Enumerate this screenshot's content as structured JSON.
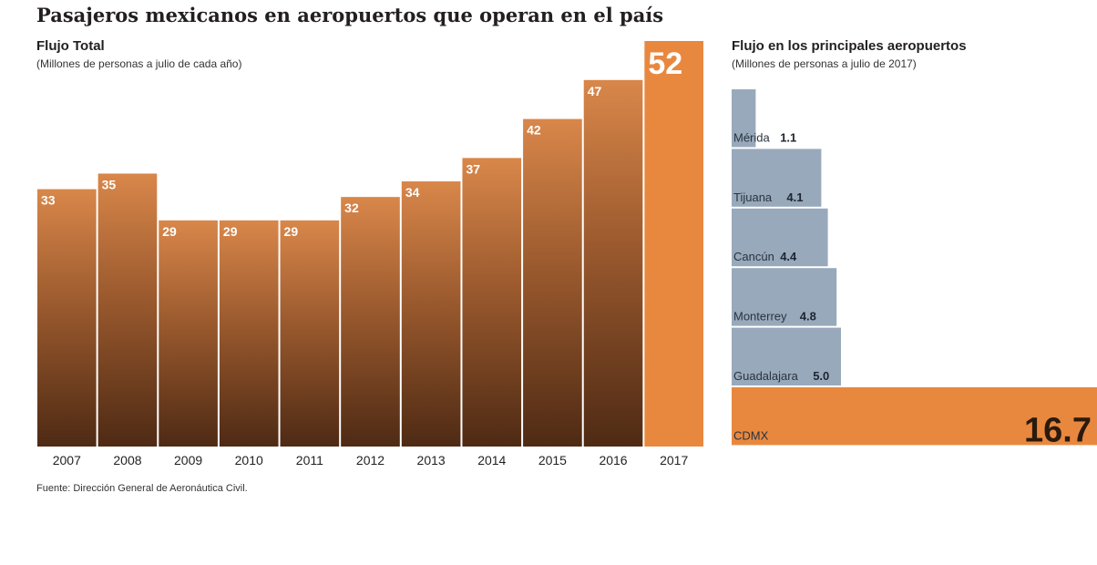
{
  "title": "Pasajeros mexicanos en aeropuertos que operan en el país",
  "source": "Fuente: Dirección General de Aeronáutica Civil.",
  "colors": {
    "accent": "#e8883f",
    "photo_dark": "#6b3a1c",
    "slate": "#98a9bb",
    "text": "#231f20"
  },
  "chart_data": [
    {
      "type": "bar",
      "title": "Flujo Total",
      "subtitle": "(Millones de personas a julio de cada año)",
      "xlabel": "",
      "ylabel": "",
      "categories": [
        "2007",
        "2008",
        "2009",
        "2010",
        "2011",
        "2012",
        "2013",
        "2014",
        "2015",
        "2016",
        "2017"
      ],
      "values": [
        33,
        35,
        29,
        29,
        29,
        32,
        34,
        37,
        42,
        47,
        52
      ],
      "ylim": [
        0,
        52
      ],
      "grid": false
    },
    {
      "type": "bar",
      "orientation": "horizontal",
      "title": "Flujo en los principales aeropuertos",
      "subtitle": "(Millones de personas a julio de 2017)",
      "categories": [
        "Mérida",
        "Tijuana",
        "Cancún",
        "Monterrey",
        "Guadalajara",
        "CDMX"
      ],
      "values": [
        1.1,
        4.1,
        4.4,
        4.8,
        5.0,
        16.7
      ],
      "value_labels": [
        "1.1",
        "4.1",
        "4.4",
        "4.8",
        "5.0",
        "16.7"
      ],
      "highlight": "CDMX",
      "grid": false
    }
  ]
}
